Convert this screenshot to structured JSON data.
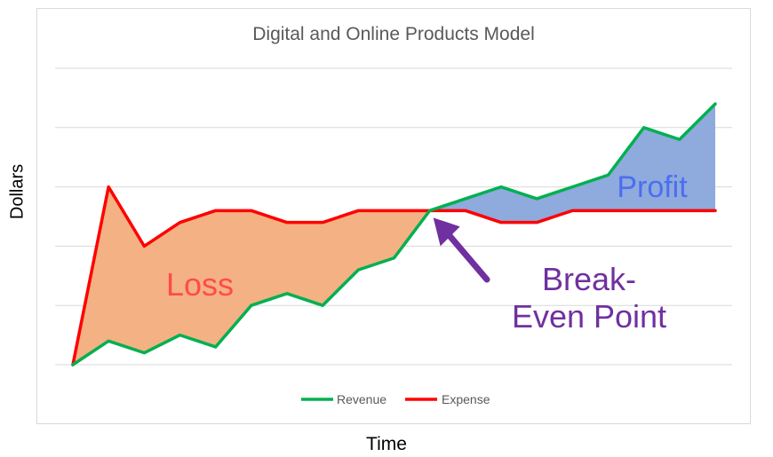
{
  "chart_data": {
    "type": "area",
    "title": "Digital and Online Products Model",
    "xlabel": "Time",
    "ylabel": "Dollars",
    "x": [
      1,
      2,
      3,
      4,
      5,
      6,
      7,
      8,
      9,
      10,
      11,
      12,
      13,
      14,
      15,
      16,
      17,
      18,
      19
    ],
    "ylim": [
      0,
      5
    ],
    "grid": true,
    "legend_position": "bottom",
    "series": [
      {
        "name": "Revenue",
        "color": "#00b050",
        "values": [
          0,
          0.4,
          0.2,
          0.5,
          0.3,
          1.0,
          1.2,
          1.0,
          1.6,
          1.8,
          2.6,
          2.8,
          3.0,
          2.8,
          3.0,
          3.2,
          4.0,
          3.8,
          4.4
        ]
      },
      {
        "name": "Expense",
        "color": "#ff0000",
        "values": [
          0,
          3.0,
          2.0,
          2.4,
          2.6,
          2.6,
          2.4,
          2.4,
          2.6,
          2.6,
          2.6,
          2.6,
          2.4,
          2.4,
          2.6,
          2.6,
          2.6,
          2.6,
          2.6
        ]
      }
    ],
    "regions": {
      "loss_color": "#f4b183",
      "profit_color": "#8faadc"
    },
    "annotations": [
      {
        "text": "Loss",
        "color": "#ff4b4b"
      },
      {
        "text": "Profit",
        "color": "#4a6ff0"
      },
      {
        "text": "Break-",
        "color": "#7030a0"
      },
      {
        "text": "Even Point",
        "color": "#7030a0"
      }
    ],
    "arrow_color": "#7030a0"
  }
}
